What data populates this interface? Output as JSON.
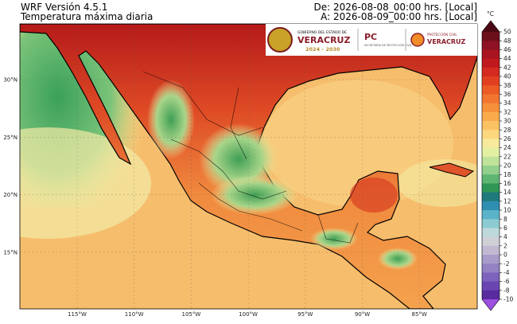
{
  "header": {
    "model": "WRF Versión 4.5.1",
    "variable": "Temperatura máxima diaria",
    "from": "De: 2026-08-08_00:00 hrs. [Local]",
    "to": "A: 2026-08-09_00:00 hrs. [Local]"
  },
  "map": {
    "latitudes": [
      "30°N",
      "25°N",
      "20°N",
      "15°N"
    ],
    "longitudes": [
      "115°W",
      "110°W",
      "105°W",
      "100°W",
      "95°W",
      "90°W",
      "85°W"
    ]
  },
  "logos": {
    "gov_line1": "GOBIERNO DEL ESTADO DE",
    "gov_name": "VERACRUZ",
    "gov_years": "2024 - 2030",
    "pc": "PC",
    "pc_sub": "SECRETARÍA DE PROTECCIÓN CIVIL",
    "pcv_line1": "PROTECCIÓN CIVIL",
    "pcv_name": "VERACRUZ"
  },
  "colorbar": {
    "unit": "°C",
    "ticks": [
      50,
      48,
      46,
      44,
      42,
      40,
      38,
      36,
      34,
      32,
      30,
      28,
      26,
      24,
      22,
      20,
      18,
      16,
      14,
      12,
      10,
      8,
      6,
      4,
      2,
      0,
      -2,
      -4,
      -6,
      -8,
      -10
    ]
  }
}
